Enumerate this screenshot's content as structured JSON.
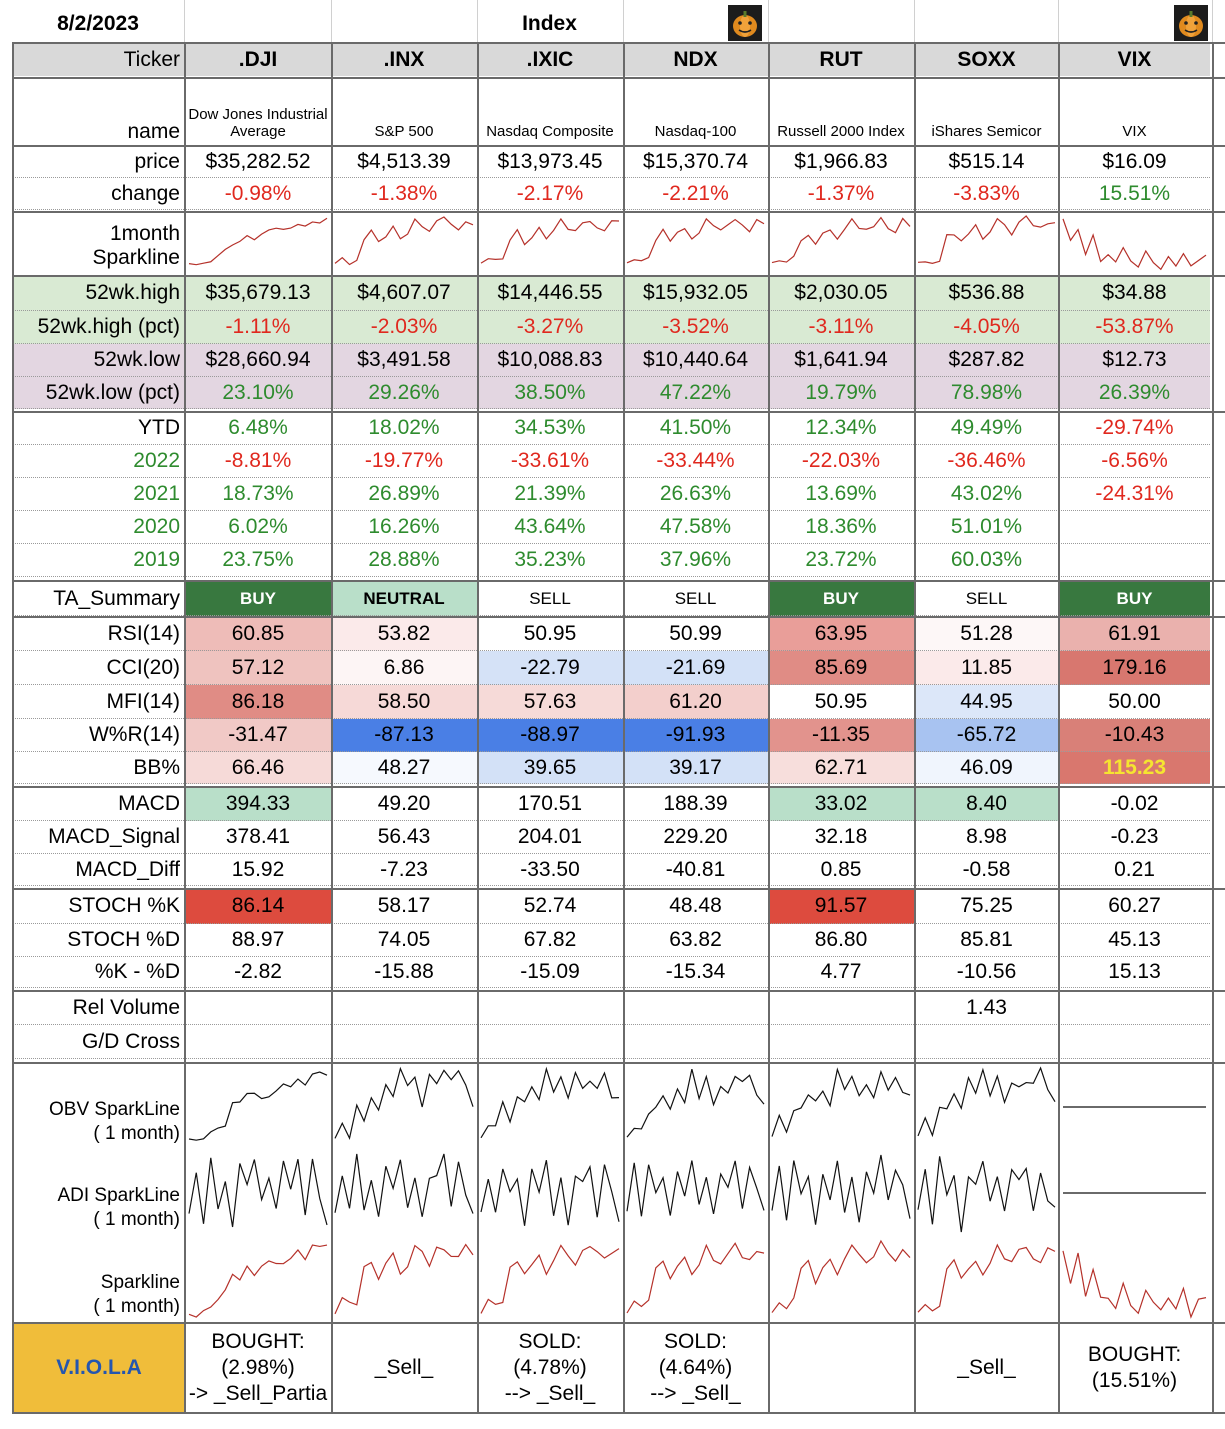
{
  "date": "8/2/2023",
  "section_title": "Index",
  "header_icon": "pumpkin-icon",
  "labels": {
    "ticker": "Ticker",
    "name": "name",
    "price": "price",
    "change": "change",
    "sparkline_1": "1month",
    "sparkline_2": "Sparkline",
    "high": "52wk.high",
    "high_pct": "52wk.high (pct)",
    "low": "52wk.low",
    "low_pct": "52wk.low (pct)",
    "ytd": "YTD",
    "y2022": "2022",
    "y2021": "2021",
    "y2020": "2020",
    "y2019": "2019",
    "ta_summary": "TA_Summary",
    "rsi": "RSI(14)",
    "cci": "CCI(20)",
    "mfi": "MFI(14)",
    "wr": "W%R(14)",
    "bb": "BB%",
    "macd": "MACD",
    "macd_signal": "MACD_Signal",
    "macd_diff": "MACD_Diff",
    "stoch_k": "STOCH %K",
    "stoch_d": "STOCH %D",
    "k_minus_d": "%K - %D",
    "rel_volume": "Rel Volume",
    "gd_cross": "G/D Cross",
    "obv_1": "OBV SparkLine",
    "obv_2": "( 1 month)",
    "adi_1": "ADI SparkLine",
    "adi_2": "( 1 month)",
    "spark_1": "Sparkline",
    "spark_2": "( 1 month)",
    "viola": "V.I.O.L.A"
  },
  "colors": {
    "header_bg": "#d9d9d9",
    "green_band": "#d9ead3",
    "purple_band": "#e3d6e1",
    "buy_bg": "#38783f",
    "neutral_bg": "#b9dfc9",
    "viola_bg": "#f0bd3a",
    "viola_text": "#2456b0",
    "pos_text": "#2e8b2e",
    "neg_text": "#e0281e",
    "bb_highlight_text": "#f5e530"
  },
  "tickers": [
    {
      "symbol": ".DJI",
      "name": "Dow Jones Industrial Average",
      "price": "$35,282.52",
      "change": "-0.98%",
      "high": "$35,679.13",
      "high_pct": "-1.11%",
      "low": "$28,660.94",
      "low_pct": "23.10%",
      "ytd": "6.48%",
      "y2022": "-8.81%",
      "y2021": "18.73%",
      "y2020": "6.02%",
      "y2019": "23.75%",
      "ta": "BUY",
      "rsi": "60.85",
      "cci": "57.12",
      "mfi": "86.18",
      "wr": "-31.47",
      "bb": "66.46",
      "macd": "394.33",
      "macd_signal": "378.41",
      "macd_diff": "15.92",
      "stoch_k": "86.14",
      "stoch_d": "88.97",
      "k_minus_d": "-2.82",
      "rel_volume": "",
      "gd_cross": "",
      "viola": "BOUGHT:\n(2.98%)\n-> _Sell_Partia"
    },
    {
      "symbol": ".INX",
      "name": "S&P 500",
      "price": "$4,513.39",
      "change": "-1.38%",
      "high": "$4,607.07",
      "high_pct": "-2.03%",
      "low": "$3,491.58",
      "low_pct": "29.26%",
      "ytd": "18.02%",
      "y2022": "-19.77%",
      "y2021": "26.89%",
      "y2020": "16.26%",
      "y2019": "28.88%",
      "ta": "NEUTRAL",
      "rsi": "53.82",
      "cci": "6.86",
      "mfi": "58.50",
      "wr": "-87.13",
      "bb": "48.27",
      "macd": "49.20",
      "macd_signal": "56.43",
      "macd_diff": "-7.23",
      "stoch_k": "58.17",
      "stoch_d": "74.05",
      "k_minus_d": "-15.88",
      "rel_volume": "",
      "gd_cross": "",
      "viola": "_Sell_"
    },
    {
      "symbol": ".IXIC",
      "name": "Nasdaq Composite",
      "price": "$13,973.45",
      "change": "-2.17%",
      "high": "$14,446.55",
      "high_pct": "-3.27%",
      "low": "$10,088.83",
      "low_pct": "38.50%",
      "ytd": "34.53%",
      "y2022": "-33.61%",
      "y2021": "21.39%",
      "y2020": "43.64%",
      "y2019": "35.23%",
      "ta": "SELL",
      "rsi": "50.95",
      "cci": "-22.79",
      "mfi": "57.63",
      "wr": "-88.97",
      "bb": "39.65",
      "macd": "170.51",
      "macd_signal": "204.01",
      "macd_diff": "-33.50",
      "stoch_k": "52.74",
      "stoch_d": "67.82",
      "k_minus_d": "-15.09",
      "rel_volume": "",
      "gd_cross": "",
      "viola": "SOLD:\n(4.78%)\n--> _Sell_"
    },
    {
      "symbol": "NDX",
      "name": "Nasdaq-100",
      "price": "$15,370.74",
      "change": "-2.21%",
      "high": "$15,932.05",
      "high_pct": "-3.52%",
      "low": "$10,440.64",
      "low_pct": "47.22%",
      "ytd": "41.50%",
      "y2022": "-33.44%",
      "y2021": "26.63%",
      "y2020": "47.58%",
      "y2019": "37.96%",
      "ta": "SELL",
      "rsi": "50.99",
      "cci": "-21.69",
      "mfi": "61.20",
      "wr": "-91.93",
      "bb": "39.17",
      "macd": "188.39",
      "macd_signal": "229.20",
      "macd_diff": "-40.81",
      "stoch_k": "48.48",
      "stoch_d": "63.82",
      "k_minus_d": "-15.34",
      "rel_volume": "",
      "gd_cross": "",
      "viola": "SOLD:\n(4.64%)\n--> _Sell_"
    },
    {
      "symbol": "RUT",
      "name": "Russell 2000 Index",
      "price": "$1,966.83",
      "change": "-1.37%",
      "high": "$2,030.05",
      "high_pct": "-3.11%",
      "low": "$1,641.94",
      "low_pct": "19.79%",
      "ytd": "12.34%",
      "y2022": "-22.03%",
      "y2021": "13.69%",
      "y2020": "18.36%",
      "y2019": "23.72%",
      "ta": "BUY",
      "rsi": "63.95",
      "cci": "85.69",
      "mfi": "50.95",
      "wr": "-11.35",
      "bb": "62.71",
      "macd": "33.02",
      "macd_signal": "32.18",
      "macd_diff": "0.85",
      "stoch_k": "91.57",
      "stoch_d": "86.80",
      "k_minus_d": "4.77",
      "rel_volume": "",
      "gd_cross": "",
      "viola": ""
    },
    {
      "symbol": "SOXX",
      "name": "iShares Semicor",
      "price": "$515.14",
      "change": "-3.83%",
      "high": "$536.88",
      "high_pct": "-4.05%",
      "low": "$287.82",
      "low_pct": "78.98%",
      "ytd": "49.49%",
      "y2022": "-36.46%",
      "y2021": "43.02%",
      "y2020": "51.01%",
      "y2019": "60.03%",
      "ta": "SELL",
      "rsi": "51.28",
      "cci": "11.85",
      "mfi": "44.95",
      "wr": "-65.72",
      "bb": "46.09",
      "macd": "8.40",
      "macd_signal": "8.98",
      "macd_diff": "-0.58",
      "stoch_k": "75.25",
      "stoch_d": "85.81",
      "k_minus_d": "-10.56",
      "rel_volume": "1.43",
      "gd_cross": "",
      "viola": "_Sell_"
    },
    {
      "symbol": "VIX",
      "name": "VIX",
      "price": "$16.09",
      "change": "15.51%",
      "high": "$34.88",
      "high_pct": "-53.87%",
      "low": "$12.73",
      "low_pct": "26.39%",
      "ytd": "-29.74%",
      "y2022": "-6.56%",
      "y2021": "-24.31%",
      "y2020": "",
      "y2019": "",
      "ta": "BUY",
      "rsi": "61.91",
      "cci": "179.16",
      "mfi": "50.00",
      "wr": "-10.43",
      "bb": "115.23",
      "macd": "-0.02",
      "macd_signal": "-0.23",
      "macd_diff": "0.21",
      "stoch_k": "60.27",
      "stoch_d": "45.13",
      "k_minus_d": "15.13",
      "rel_volume": "",
      "gd_cross": "",
      "viola": "BOUGHT:\n(15.51%)"
    }
  ]
}
